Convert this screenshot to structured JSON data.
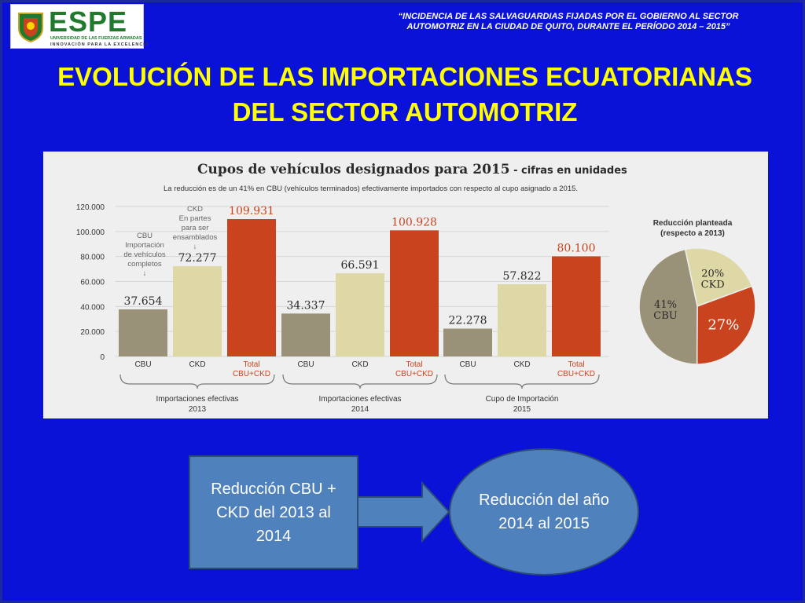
{
  "header": {
    "logo_text": "ESPE",
    "logo_sub1": "UNIVERSIDAD DE LAS FUERZAS ARMADAS",
    "logo_sub2": "INNOVACIÓN PARA LA EXCELENCIA",
    "quote_line1": "“INCIDENCIA DE LAS SALVAGUARDIAS FIJADAS POR EL GOBIERNO AL SECTOR",
    "quote_line2": "AUTOMOTRIZ EN LA CIUDAD DE QUITO, DURANTE EL PERÍODO 2014 – 2015”"
  },
  "slide": {
    "title_line1": "EVOLUCIÓN DE LAS IMPORTACIONES ECUATORIANAS",
    "title_line2": "DEL SECTOR AUTOMOTRIZ"
  },
  "chart_data": [
    {
      "type": "bar",
      "title": "Cupos de vehículos designados para 2015",
      "title_suffix": " - cifras en unidades",
      "subtitle": "La reducción es de un 41% en CBU (vehículos terminados) efectivamente importados con respecto al cupo asignado a 2015.",
      "ylim": [
        0,
        120000
      ],
      "yticks": [
        "120.000",
        "100.000",
        "80.000",
        "60.000",
        "40.000",
        "20.000",
        "0"
      ],
      "ytick_values": [
        120000,
        100000,
        80000,
        60000,
        40000,
        20000,
        0
      ],
      "grid": true,
      "groups": [
        {
          "label_line1": "Importaciones efectivas",
          "label_line2": "2013",
          "bars": [
            {
              "category": "CBU",
              "category_line2": "",
              "value": 37654,
              "value_label": "37.654",
              "color": "#9a9179"
            },
            {
              "category": "CKD",
              "category_line2": "",
              "value": 72277,
              "value_label": "72.277",
              "color": "#ded8a6"
            },
            {
              "category": "Total",
              "category_line2": "CBU+CKD",
              "value": 109931,
              "value_label": "109.931",
              "color": "#c9441e"
            }
          ]
        },
        {
          "label_line1": "Importaciones efectivas",
          "label_line2": "2014",
          "bars": [
            {
              "category": "CBU",
              "category_line2": "",
              "value": 34337,
              "value_label": "34.337",
              "color": "#9a9179"
            },
            {
              "category": "CKD",
              "category_line2": "",
              "value": 66591,
              "value_label": "66.591",
              "color": "#ded8a6"
            },
            {
              "category": "Total",
              "category_line2": "CBU+CKD",
              "value": 100928,
              "value_label": "100.928",
              "color": "#c9441e"
            }
          ]
        },
        {
          "label_line1": "Cupo de Importación",
          "label_line2": "2015",
          "bars": [
            {
              "category": "CBU",
              "category_line2": "",
              "value": 22278,
              "value_label": "22.278",
              "color": "#9a9179"
            },
            {
              "category": "CKD",
              "category_line2": "",
              "value": 57822,
              "value_label": "57.822",
              "color": "#ded8a6"
            },
            {
              "category": "Total",
              "category_line2": "CBU+CKD",
              "value": 80100,
              "value_label": "80.100",
              "color": "#c9441e"
            }
          ]
        }
      ],
      "annotations": {
        "cbu": [
          "CBU",
          "Importación",
          "de vehículos",
          "completos",
          "↓"
        ],
        "ckd": [
          "CKD",
          "En partes",
          "para ser",
          "ensamblados",
          "↓"
        ]
      }
    },
    {
      "type": "pie",
      "title_line1": "Reducción planteada",
      "title_line2": "(respecto a 2013)",
      "slices": [
        {
          "label_line1": "41%",
          "label_line2": "CBU",
          "value": 41,
          "color": "#9a9179"
        },
        {
          "label_line1": "20%",
          "label_line2": "CKD",
          "value": 20,
          "color": "#ded8a6"
        },
        {
          "label_line1": "27%",
          "label_line2": "",
          "value": 27,
          "color": "#c9441e"
        }
      ]
    }
  ],
  "flow": {
    "box_text": "Reducción CBU + CKD del 2013 al 2014",
    "oval_text": "Reducción del año 2014 al 2015",
    "arrow_icon": "right-arrow-icon"
  }
}
